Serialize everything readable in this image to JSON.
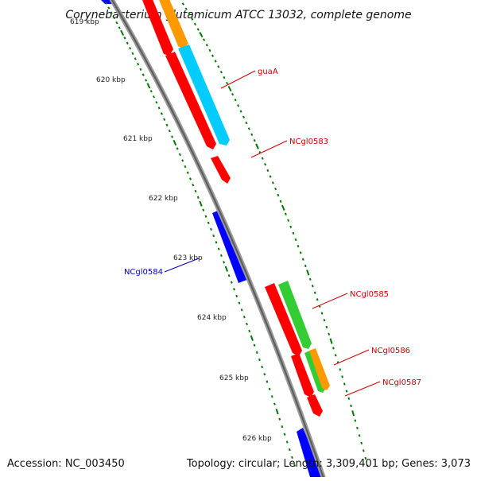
{
  "title": "Corynebacterium glutamicum ATCC 13032, complete genome",
  "footer": {
    "accession": "Accession: NC_003450",
    "summary": "Topology: circular; Length: 3,309,401 bp; Genes: 3,073"
  },
  "colors": {
    "backbone": "#888888",
    "tick": "#007700",
    "forward_label": "#cc0000",
    "reverse_label": "#0000aa",
    "red": "#ff0000",
    "blue": "#0000ff",
    "orange": "#ff9900",
    "cyan": "#00ccff",
    "green": "#33cc33"
  },
  "ruler": {
    "unit": "kbp",
    "ticks": [
      {
        "label": "619 kbp",
        "kbp": 619
      },
      {
        "label": "620 kbp",
        "kbp": 620
      },
      {
        "label": "621 kbp",
        "kbp": 621
      },
      {
        "label": "622 kbp",
        "kbp": 622
      },
      {
        "label": "623 kbp",
        "kbp": 623
      },
      {
        "label": "624 kbp",
        "kbp": 624
      },
      {
        "label": "625 kbp",
        "kbp": 625
      },
      {
        "label": "626 kbp",
        "kbp": 626
      }
    ]
  },
  "gene_labels": [
    {
      "name": "guaA",
      "strand": "forward"
    },
    {
      "name": "NCgl0583",
      "strand": "forward"
    },
    {
      "name": "NCgl0584",
      "strand": "reverse"
    },
    {
      "name": "NCgl0585",
      "strand": "forward"
    },
    {
      "name": "NCgl0586",
      "strand": "forward"
    },
    {
      "name": "NCgl0587",
      "strand": "forward"
    }
  ]
}
